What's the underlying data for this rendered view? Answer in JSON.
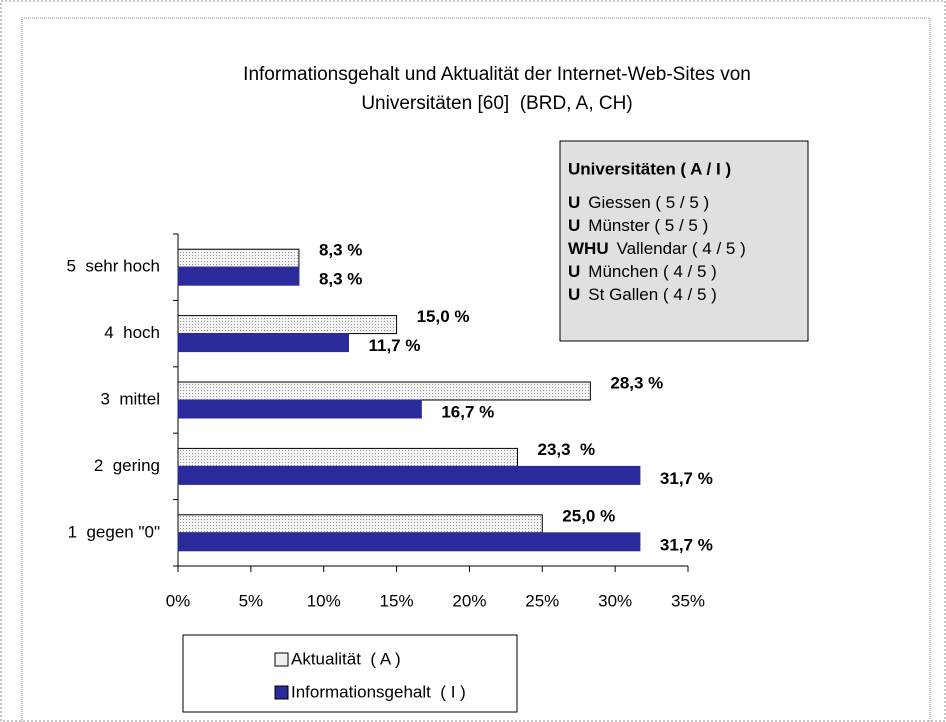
{
  "chart_data": {
    "type": "barh",
    "title": [
      "Informationsgehalt und Aktualität der Internet-Web-Sites von",
      "Universitäten [60]  (BRD, A, CH)"
    ],
    "categories": [
      "5  sehr hoch",
      "4  hoch",
      "3  mittel",
      "2  gering",
      "1  gegen \"0\""
    ],
    "series": [
      {
        "name": "Aktualität  ( A )",
        "color": "#f0f0f0",
        "values": [
          8.3,
          15.0,
          28.3,
          23.3,
          25.0
        ],
        "value_labels": [
          "8,3 %",
          "15,0 %",
          "28,3 %",
          "23,3  %",
          "25,0 %"
        ]
      },
      {
        "name": "Informationsgehalt  ( I )",
        "color": "#2a2a9a",
        "values": [
          8.3,
          11.7,
          16.7,
          31.7,
          31.7
        ],
        "value_labels": [
          "8,3 %",
          "11,7 %",
          "16,7 %",
          "31,7 %",
          "31,7 %"
        ]
      }
    ],
    "xlim": [
      0,
      35
    ],
    "xticks": [
      {
        "value": 0,
        "label": "0%"
      },
      {
        "value": 5,
        "label": "5%"
      },
      {
        "value": 10,
        "label": "10%"
      },
      {
        "value": 15,
        "label": "15%"
      },
      {
        "value": 20,
        "label": "20%"
      },
      {
        "value": 25,
        "label": "25%"
      },
      {
        "value": 30,
        "label": "30%"
      },
      {
        "value": 35,
        "label": "35%"
      }
    ],
    "info_box": {
      "title": "Universitäten ( A / I )",
      "items": [
        {
          "prefix": "U",
          "text": "Giessen ( 5 / 5 )"
        },
        {
          "prefix": "U",
          "text": "Münster ( 5 / 5 )"
        },
        {
          "prefix": "WHU",
          "text": "Vallendar ( 4 / 5 )"
        },
        {
          "prefix": "U",
          "text": "München ( 4 / 5 )"
        },
        {
          "prefix": "U",
          "text": "St Gallen ( 4 / 5 )"
        }
      ]
    }
  }
}
